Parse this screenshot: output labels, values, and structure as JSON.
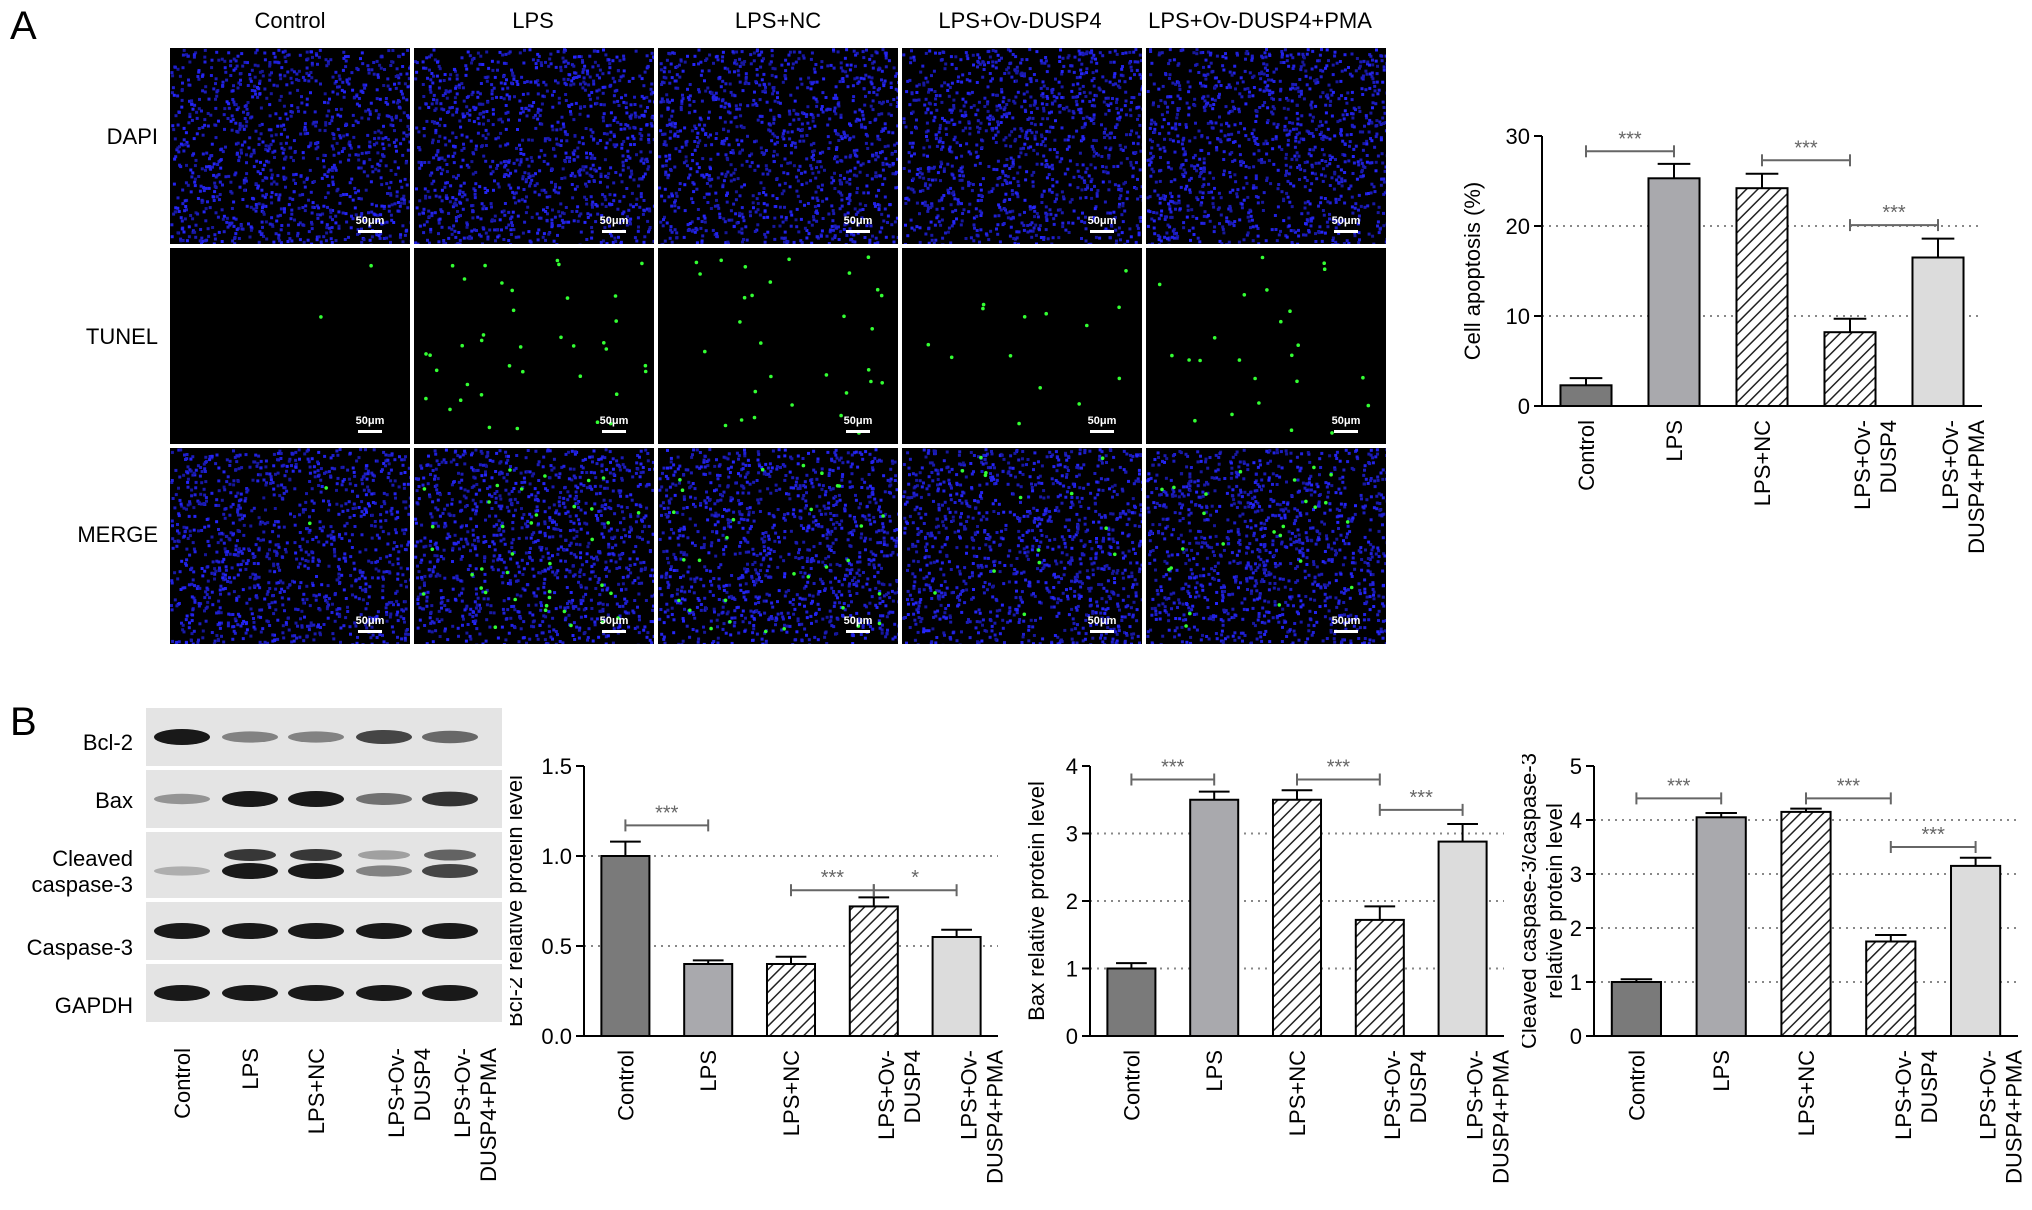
{
  "panels": {
    "a": {
      "letter": "A"
    },
    "b": {
      "letter": "B"
    }
  },
  "microscopy": {
    "columns": [
      "Control",
      "LPS",
      "LPS+NC",
      "LPS+Ov-DUSP4",
      "LPS+Ov-DUSP4+PMA"
    ],
    "rows": [
      "DAPI",
      "TUNEL",
      "MERGE"
    ],
    "scale_bar_label": "50μm",
    "tunel_dot_counts": {
      "TUNEL": [
        2,
        38,
        30,
        14,
        24
      ],
      "MERGE": [
        2,
        38,
        30,
        14,
        24
      ]
    },
    "colors": {
      "dapi": "#1a1aff",
      "tunel": "#33ff33",
      "background": "#000000"
    }
  },
  "western_blot": {
    "bands": [
      "Bcl-2",
      "Bax",
      "Cleaved caspase-3",
      "Caspase-3",
      "GAPDH"
    ],
    "band_labels": [
      "Bcl-2",
      "Bax",
      "Cleaved\ncaspase-3",
      "Caspase-3",
      "GAPDH"
    ],
    "lanes": [
      "Control",
      "LPS",
      "LPS+NC",
      "LPS+Ov-\nDUSP4",
      "LPS+Ov-\nDUSP4+PMA"
    ],
    "intensities": {
      "Bcl-2": [
        1.0,
        0.4,
        0.4,
        0.75,
        0.55
      ],
      "Bax": [
        0.3,
        1.0,
        1.0,
        0.5,
        0.85
      ],
      "Cleaved caspase-3": [
        0.15,
        1.0,
        1.0,
        0.4,
        0.75
      ],
      "Caspase-3": [
        1.0,
        1.0,
        1.0,
        1.0,
        1.0
      ],
      "GAPDH": [
        1.0,
        1.0,
        1.0,
        1.0,
        1.0
      ]
    }
  },
  "colors": {
    "control_fill": "#7a7a7a",
    "lps_fill": "#a9a9ad",
    "hatch_fill": "#ffffff",
    "pma_fill": "#dcdcdc",
    "grid": "#888888",
    "significance": "#666666"
  },
  "chart_data": [
    {
      "type": "bar",
      "categories": [
        "Control",
        "LPS",
        "LPS+NC",
        "LPS+Ov-\nDUSP4",
        "LPS+Ov-\nDUSP4+PMA"
      ],
      "values": [
        2.3,
        25.3,
        24.2,
        8.2,
        16.5
      ],
      "errors": [
        0.8,
        1.6,
        1.6,
        1.5,
        2.1
      ],
      "ylabel": "Cell apoptosis (%)",
      "ylim": [
        0,
        30
      ],
      "yticks": [
        0,
        10,
        20,
        30
      ],
      "grid_lines": [
        10,
        20
      ],
      "significance": [
        {
          "from": 0,
          "to": 1,
          "y": 28.3,
          "label": "***"
        },
        {
          "from": 2,
          "to": 3,
          "y": 27.3,
          "label": "***"
        },
        {
          "from": 3,
          "to": 4,
          "y": 20.1,
          "label": "***"
        }
      ]
    },
    {
      "type": "bar",
      "categories": [
        "Control",
        "LPS",
        "LPS+NC",
        "LPS+Ov-\nDUSP4",
        "LPS+Ov-\nDUSP4+PMA"
      ],
      "values": [
        1.0,
        0.4,
        0.4,
        0.72,
        0.55
      ],
      "errors": [
        0.08,
        0.02,
        0.04,
        0.05,
        0.04
      ],
      "ylabel": "Bcl-2 relative protein level",
      "ylim": [
        0,
        1.5
      ],
      "yticks": [
        "0.0",
        "0.5",
        "1.0",
        "1.5"
      ],
      "grid_lines": [
        0.5,
        1.0
      ],
      "significance": [
        {
          "from": 0,
          "to": 1,
          "y": 1.17,
          "label": "***"
        },
        {
          "from": 2,
          "to": 3,
          "y": 0.81,
          "label": "***"
        },
        {
          "from": 3,
          "to": 4,
          "y": 0.81,
          "label": "*"
        }
      ]
    },
    {
      "type": "bar",
      "categories": [
        "Control",
        "LPS",
        "LPS+NC",
        "LPS+Ov-\nDUSP4",
        "LPS+Ov-\nDUSP4+PMA"
      ],
      "values": [
        1.0,
        3.5,
        3.5,
        1.72,
        2.88
      ],
      "errors": [
        0.08,
        0.12,
        0.14,
        0.2,
        0.26
      ],
      "ylabel": "Bax relative protein level",
      "ylim": [
        0,
        4
      ],
      "yticks": [
        0,
        1,
        2,
        3,
        4
      ],
      "grid_lines": [
        1,
        2,
        3
      ],
      "significance": [
        {
          "from": 0,
          "to": 1,
          "y": 3.8,
          "label": "***"
        },
        {
          "from": 2,
          "to": 3,
          "y": 3.8,
          "label": "***"
        },
        {
          "from": 3,
          "to": 4,
          "y": 3.35,
          "label": "***"
        }
      ]
    },
    {
      "type": "bar",
      "categories": [
        "Control",
        "LPS",
        "LPS+NC",
        "LPS+Ov-\nDUSP4",
        "LPS+Ov-\nDUSP4+PMA"
      ],
      "values": [
        1.0,
        4.05,
        4.15,
        1.75,
        3.15
      ],
      "errors": [
        0.05,
        0.08,
        0.06,
        0.12,
        0.15
      ],
      "ylabel": "Cleaved caspase-3/caspase-3\nrelative protein level",
      "ylim": [
        0,
        5
      ],
      "yticks": [
        0,
        1,
        2,
        3,
        4,
        5
      ],
      "grid_lines": [
        1,
        2,
        3,
        4
      ],
      "significance": [
        {
          "from": 0,
          "to": 1,
          "y": 4.4,
          "label": "***"
        },
        {
          "from": 2,
          "to": 3,
          "y": 4.4,
          "label": "***"
        },
        {
          "from": 3,
          "to": 4,
          "y": 3.5,
          "label": "***"
        }
      ]
    }
  ]
}
